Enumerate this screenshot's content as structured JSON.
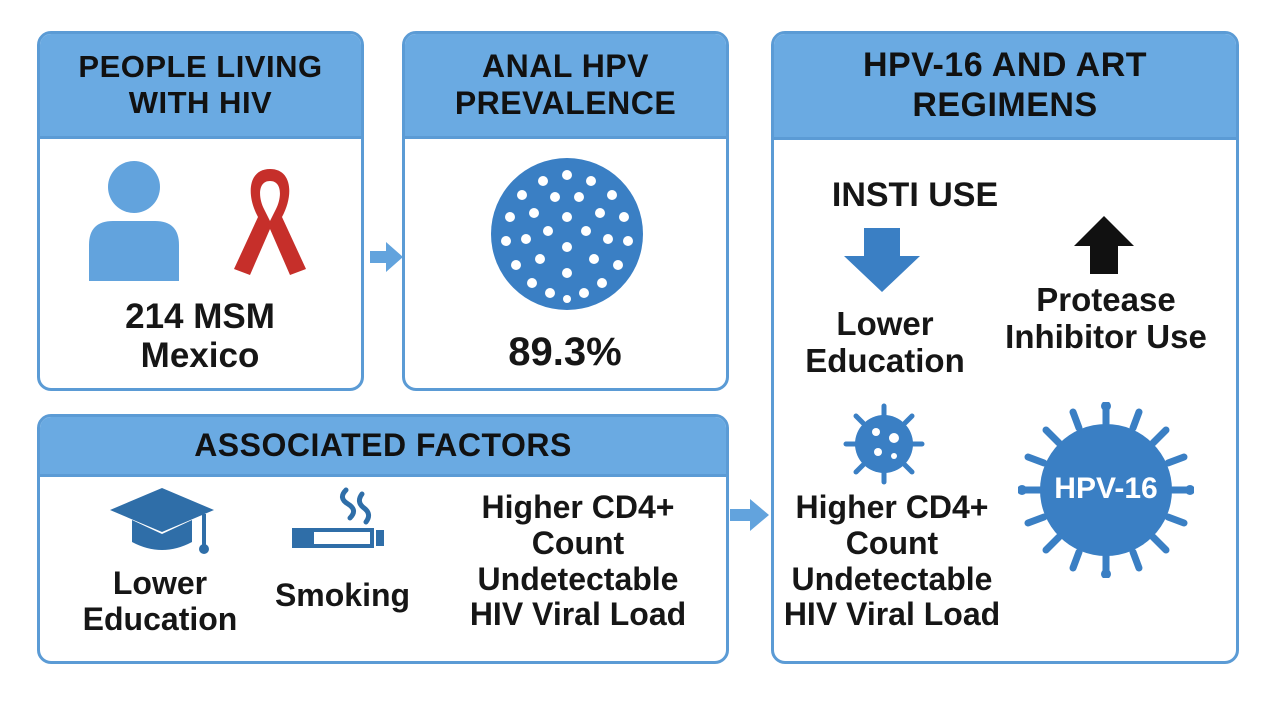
{
  "panels": {
    "people": {
      "title": "PEOPLE LIVING\nWITH HIV",
      "caption": "214 MSM\nMexico",
      "icons": [
        "person-icon",
        "red-ribbon-icon"
      ]
    },
    "prevalence": {
      "title": "ANAL HPV\nPREVALENCE",
      "value": "89.3%",
      "icons": [
        "hpv-virus-particle-icon"
      ]
    },
    "factors": {
      "title": "ASSOCIATED FACTORS",
      "items": [
        {
          "label": "Lower\nEducation",
          "icon": "graduation-cap-icon"
        },
        {
          "label": "Smoking",
          "icon": "cigarette-icon"
        },
        {
          "label": "Higher CD4+\nCount\nUndetectable\nHIV Viral Load"
        }
      ]
    },
    "regimens": {
      "title": "HPV-16 AND ART\nREGIMENS",
      "insti_label": "INSTI USE",
      "insti_effect": "Lower\nEducation",
      "protease_label": "Protease\nInhibitor Use",
      "bottom_label": "Higher CD4+\nCount\nUndetectable\nHIV Viral Load",
      "virus_label": "HPV-16",
      "icons": [
        "arrow-down-icon",
        "arrow-up-icon",
        "virus-icon",
        "hpv16-virus-icon"
      ]
    }
  },
  "colors": {
    "panel_header": "#6aaae2",
    "panel_border": "#5b9bd5",
    "icon_blue": "#3a7fc4",
    "ribbon_red": "#c62f2a",
    "arrow_black": "#111111"
  }
}
